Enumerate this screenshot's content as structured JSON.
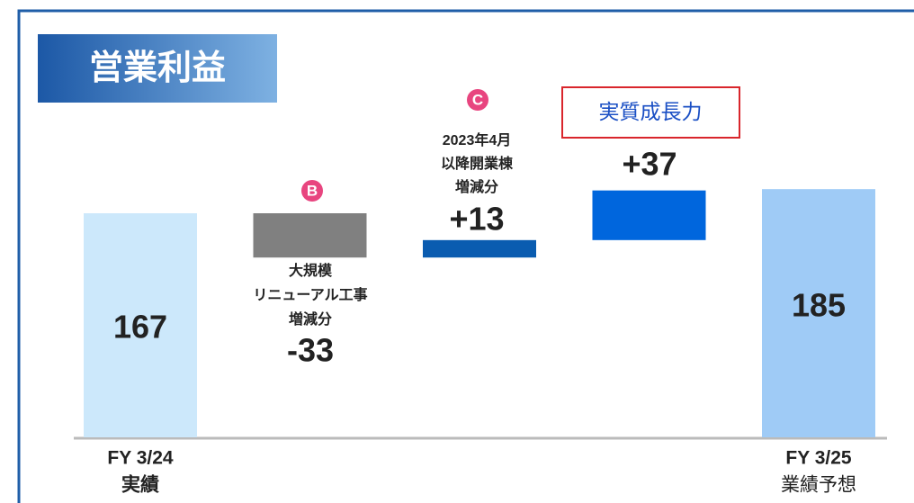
{
  "chart_data": {
    "type": "waterfall",
    "title": "営業利益",
    "categories": [
      [
        "FY 3/24",
        "実績"
      ],
      [
        "大規模",
        "リニューアル工事",
        "増減分"
      ],
      [
        "2023年4月",
        "以降開業棟",
        "増減分"
      ],
      [],
      [
        "FY 3/25",
        "業績予想"
      ]
    ],
    "values": [
      167,
      -33,
      13,
      37,
      185
    ],
    "value_labels": [
      "167",
      "-33",
      "+13",
      "+37",
      "185"
    ],
    "colors": [
      "#cce8fb",
      "#808080",
      "#0a5cb0",
      "#0066dd",
      "#9fcbf6"
    ],
    "annotations": [
      "B",
      "C",
      "実質成長力"
    ]
  }
}
